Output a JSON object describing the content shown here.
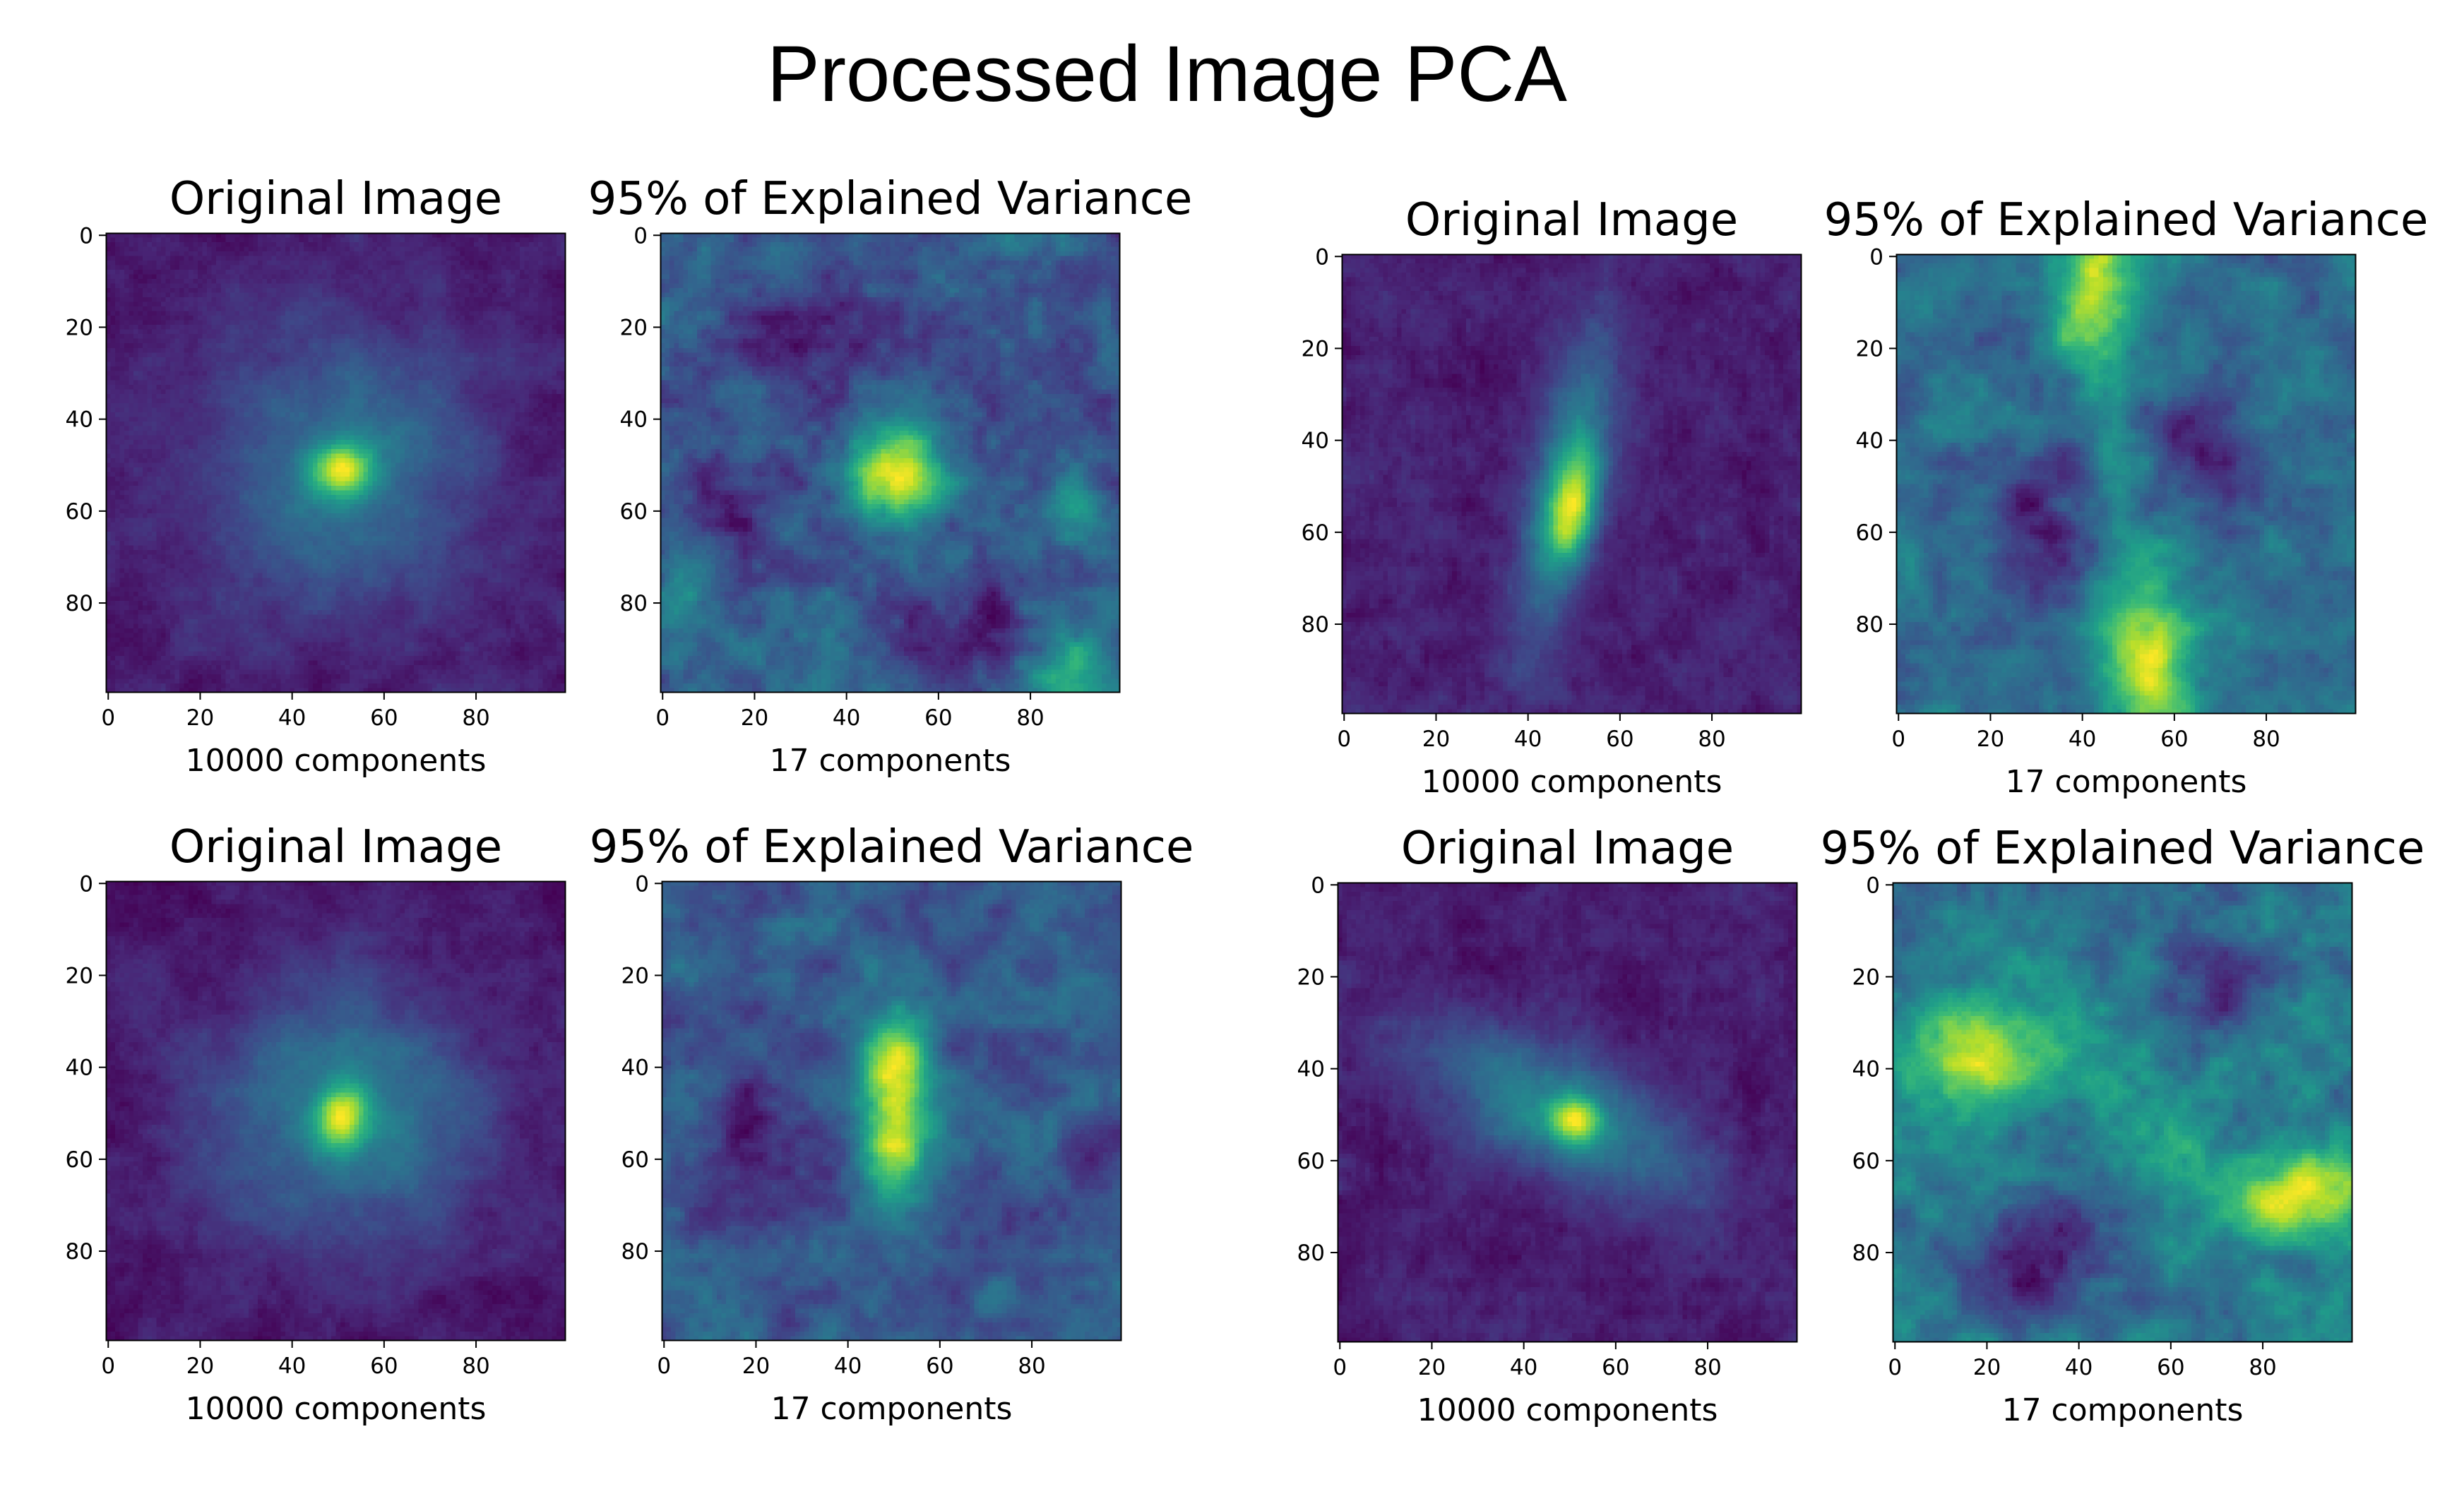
{
  "page_title": "Processed Image PCA",
  "colormap": [
    "#440154",
    "#482878",
    "#3e4989",
    "#31688e",
    "#26828e",
    "#1f9e89",
    "#35b779",
    "#6ece58",
    "#b5de2b",
    "#fde725"
  ],
  "chart_data": [
    {
      "type": "heatmap",
      "id": "tl-orig",
      "title": "Original Image",
      "xlabel": "10000 components",
      "xticks": [
        0,
        20,
        40,
        60,
        80
      ],
      "yticks": [
        0,
        20,
        40,
        60,
        80
      ],
      "xlim": [
        0,
        99
      ],
      "ylim": [
        99,
        0
      ],
      "content": {
        "kind": "orig",
        "cx": 51,
        "cy": 51,
        "sx": 4.5,
        "sy": 4,
        "angle": 0,
        "halo": 20,
        "bg": 0.22,
        "halo_amp": 0.3,
        "seed": 11
      }
    },
    {
      "type": "heatmap",
      "id": "tl-pca",
      "title": "95% of Explained Variance",
      "xlabel": "17 components",
      "xticks": [
        0,
        20,
        40,
        60,
        80
      ],
      "yticks": [
        0,
        20,
        40,
        60,
        80
      ],
      "xlim": [
        0,
        99
      ],
      "ylim": [
        99,
        0
      ],
      "content": {
        "kind": "pca",
        "bg": 0.32,
        "seed": 12,
        "blobs": [
          [
            50,
            52,
            8,
            7,
            0.62
          ],
          [
            88,
            95,
            8,
            6,
            0.3
          ],
          [
            90,
            60,
            5,
            5,
            0.12
          ],
          [
            5,
            75,
            5,
            8,
            0.15
          ]
        ],
        "darks": [
          [
            35,
            22,
            12,
            8,
            0.22
          ],
          [
            15,
            55,
            8,
            10,
            0.15
          ],
          [
            65,
            85,
            10,
            8,
            0.18
          ]
        ]
      }
    },
    {
      "type": "heatmap",
      "id": "tr-orig",
      "title": "Original Image",
      "xlabel": "10000 components",
      "xticks": [
        0,
        20,
        40,
        60,
        80
      ],
      "yticks": [
        0,
        20,
        40,
        60,
        80
      ],
      "xlim": [
        0,
        99
      ],
      "ylim": [
        99,
        0
      ],
      "content": {
        "kind": "orig",
        "cx": 50,
        "cy": 55,
        "sx": 3.5,
        "sy": 8,
        "angle": 10,
        "halo": 0,
        "bg": 0.08,
        "halo_amp": 0,
        "ridge": {
          "cx": 48,
          "cy": 50,
          "w": 5.5,
          "len": 50,
          "amp": 0.42
        },
        "seed": 21
      }
    },
    {
      "type": "heatmap",
      "id": "tr-pca",
      "title": "95% of Explained Variance",
      "xlabel": "17 components",
      "xticks": [
        0,
        20,
        40,
        60,
        80
      ],
      "yticks": [
        0,
        20,
        40,
        60,
        80
      ],
      "xlim": [
        0,
        99
      ],
      "ylim": [
        99,
        0
      ],
      "content": {
        "kind": "pca",
        "bg": 0.38,
        "seed": 22,
        "blobs": [
          [
            42,
            8,
            6,
            12,
            0.6
          ],
          [
            54,
            88,
            7,
            14,
            0.62
          ],
          [
            48,
            50,
            4,
            10,
            0.18
          ]
        ],
        "darks": [
          [
            66,
            44,
            8,
            9,
            0.32
          ],
          [
            30,
            58,
            9,
            12,
            0.28
          ]
        ]
      }
    },
    {
      "type": "heatmap",
      "id": "bl-orig",
      "title": "Original Image",
      "xlabel": "10000 components",
      "xticks": [
        0,
        20,
        40,
        60,
        80
      ],
      "yticks": [
        0,
        20,
        40,
        60,
        80
      ],
      "xlim": [
        0,
        99
      ],
      "ylim": [
        99,
        0
      ],
      "content": {
        "kind": "orig",
        "cx": 51,
        "cy": 51,
        "sx": 4,
        "sy": 5,
        "angle": 0,
        "halo": 22,
        "bg": 0.2,
        "halo_amp": 0.34,
        "seed": 31
      }
    },
    {
      "type": "heatmap",
      "id": "bl-pca",
      "title": "95% of Explained Variance",
      "xlabel": "17 components",
      "xticks": [
        0,
        20,
        40,
        60,
        80
      ],
      "yticks": [
        0,
        20,
        40,
        60,
        80
      ],
      "xlim": [
        0,
        99
      ],
      "ylim": [
        99,
        0
      ],
      "content": {
        "kind": "pca",
        "bg": 0.32,
        "seed": 32,
        "blobs": [
          [
            50,
            40,
            5,
            7,
            0.6
          ],
          [
            50,
            58,
            5,
            7,
            0.6
          ],
          [
            50,
            49,
            7,
            18,
            0.2
          ]
        ],
        "darks": [
          [
            20,
            55,
            10,
            12,
            0.18
          ],
          [
            92,
            60,
            4,
            4,
            0.25
          ],
          [
            72,
            75,
            8,
            8,
            0.1
          ]
        ]
      }
    },
    {
      "type": "heatmap",
      "id": "br-orig",
      "title": "Original Image",
      "xlabel": "10000 components",
      "xticks": [
        0,
        20,
        40,
        60,
        80
      ],
      "yticks": [
        0,
        20,
        40,
        60,
        80
      ],
      "xlim": [
        0,
        99
      ],
      "ylim": [
        99,
        0
      ],
      "content": {
        "kind": "orig",
        "cx": 51,
        "cy": 51,
        "sx": 4,
        "sy": 3.5,
        "angle": 0,
        "halo": 0,
        "bg": 0.1,
        "halo_amp": 0,
        "ridge": {
          "cx": 48,
          "cy": 50,
          "w": 9,
          "len": 46,
          "amp": 0.42,
          "angle": -62
        },
        "seed": 41
      }
    },
    {
      "type": "heatmap",
      "id": "br-pca",
      "title": "95% of Explained Variance",
      "xlabel": "17 components",
      "xticks": [
        0,
        20,
        40,
        60,
        80
      ],
      "yticks": [
        0,
        20,
        40,
        60,
        80
      ],
      "xlim": [
        0,
        99
      ],
      "ylim": [
        99,
        0
      ],
      "content": {
        "kind": "pca",
        "bg": 0.36,
        "seed": 42,
        "blobs": [
          [
            20,
            37,
            14,
            7,
            0.5
          ],
          [
            88,
            68,
            12,
            7,
            0.55
          ],
          [
            55,
            55,
            10,
            8,
            0.12
          ]
        ],
        "darks": [
          [
            30,
            80,
            10,
            10,
            0.28
          ],
          [
            70,
            20,
            12,
            10,
            0.2
          ]
        ]
      }
    }
  ]
}
